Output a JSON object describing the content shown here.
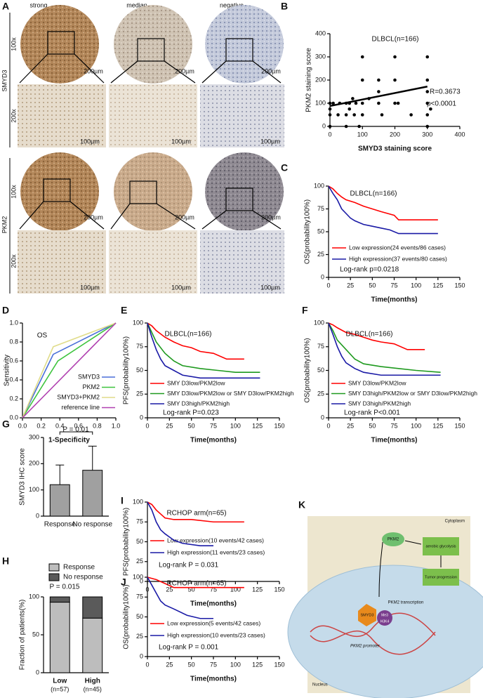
{
  "panel_labels": [
    "A",
    "B",
    "C",
    "D",
    "E",
    "F",
    "G",
    "H",
    "I",
    "J",
    "K"
  ],
  "ihc": {
    "columns": [
      "strong",
      "median",
      "negative"
    ],
    "markers": [
      "SMYD3",
      "PKM2"
    ],
    "magnifications": [
      "100x",
      "200x"
    ],
    "scale_bars": [
      "200µm",
      "100µm"
    ]
  },
  "chart_data": [
    {
      "type": "scatter",
      "xlabel": "SMYD3 staining score",
      "ylabel": "PKM2 staining score",
      "xlim": [
        0,
        400
      ],
      "ylim": [
        0,
        400
      ],
      "xticks": [
        0,
        100,
        200,
        300,
        400
      ],
      "yticks": [
        0,
        100,
        200,
        300,
        400
      ],
      "color": "#000000",
      "x": [
        0,
        0,
        0,
        0,
        10,
        25,
        30,
        50,
        50,
        50,
        60,
        60,
        70,
        75,
        80,
        90,
        100,
        100,
        100,
        100,
        120,
        150,
        150,
        150,
        160,
        200,
        200,
        200,
        210,
        250,
        300,
        300,
        300,
        300,
        300,
        310,
        300
      ],
      "values": [
        0,
        50,
        100,
        75,
        100,
        50,
        100,
        0,
        50,
        100,
        100,
        75,
        120,
        50,
        100,
        0,
        100,
        300,
        50,
        200,
        120,
        100,
        150,
        200,
        50,
        100,
        300,
        200,
        100,
        50,
        300,
        200,
        100,
        0,
        50,
        75,
        150
      ],
      "fit": {
        "x": [
          0,
          300
        ],
        "values": [
          88,
          172
        ]
      },
      "annotations": [
        "DLBCL(n=166)",
        "R=0.3673",
        "p<0.0001"
      ]
    },
    {
      "type": "line",
      "xlabel": "Time(months)",
      "ylabel": "OS(probability100%)",
      "xlim": [
        0,
        150
      ],
      "ylim": [
        0,
        100
      ],
      "xticks": [
        0,
        25,
        50,
        75,
        100,
        125,
        150
      ],
      "yticks": [
        0,
        25,
        50,
        75,
        100
      ],
      "series": [
        {
          "name": "Low expression(24 events/86 cases)",
          "color": "#ff0000",
          "x": [
            0,
            5,
            10,
            15,
            20,
            30,
            40,
            50,
            60,
            75,
            80,
            100,
            125
          ],
          "values": [
            100,
            97,
            92,
            88,
            85,
            82,
            78,
            75,
            72,
            68,
            63,
            63,
            63
          ]
        },
        {
          "name": "High expression(37 events/80 cases)",
          "color": "#1a1aa6",
          "x": [
            0,
            5,
            10,
            15,
            20,
            25,
            30,
            40,
            50,
            60,
            70,
            80,
            100,
            125
          ],
          "values": [
            100,
            92,
            85,
            75,
            70,
            65,
            62,
            58,
            56,
            54,
            52,
            48,
            48,
            48
          ]
        }
      ],
      "annotations": [
        "DLBCL(n=166)",
        "Log-rank p=0.0218"
      ]
    },
    {
      "type": "line",
      "xlabel": "1-Specificity",
      "ylabel": "Sensitivity",
      "xlim": [
        0,
        1
      ],
      "ylim": [
        0,
        1
      ],
      "xticks": [
        {
          "value": 0,
          "label": "0.0"
        },
        0.2,
        0.4,
        0.6,
        0.8,
        {
          "value": 1,
          "label": "1.0"
        }
      ],
      "yticks": [
        {
          "value": 0,
          "label": "0.0"
        },
        0.2,
        0.4,
        0.6,
        0.8,
        {
          "value": 1,
          "label": "1.0"
        }
      ],
      "series": [
        {
          "name": "SMYD3",
          "color": "#4a6fd8",
          "x": [
            0,
            0.33,
            1
          ],
          "values": [
            0,
            0.67,
            1
          ]
        },
        {
          "name": "PKM2",
          "color": "#3ec43e",
          "x": [
            0,
            0.38,
            1
          ],
          "values": [
            0,
            0.6,
            1
          ]
        },
        {
          "name": "SMYD3+PKM2",
          "color": "#e0dc8a",
          "x": [
            0,
            0.33,
            1
          ],
          "values": [
            0,
            0.75,
            1
          ]
        },
        {
          "name": "reference line",
          "color": "#b040b0",
          "x": [
            0,
            1
          ],
          "values": [
            0,
            1
          ]
        }
      ],
      "annotations": [
        "OS"
      ]
    },
    {
      "type": "line",
      "xlabel": "Time(months)",
      "ylabel": "PFS(probability100%)",
      "xlim": [
        0,
        150
      ],
      "ylim": [
        0,
        100
      ],
      "xticks": [
        0,
        25,
        50,
        75,
        100,
        125,
        150
      ],
      "yticks": [
        0,
        25,
        50,
        75,
        100
      ],
      "series": [
        {
          "name": "SMY D3low/PKM2low",
          "color": "#ff0000",
          "x": [
            0,
            5,
            10,
            20,
            30,
            40,
            50,
            60,
            75,
            90,
            110
          ],
          "values": [
            100,
            97,
            92,
            85,
            80,
            76,
            74,
            70,
            68,
            62,
            62
          ]
        },
        {
          "name": "SMY D3low/PKM2low or SMY D3low/PKM2high",
          "color": "#1f9a1f",
          "x": [
            0,
            5,
            10,
            20,
            30,
            40,
            60,
            80,
            100,
            128
          ],
          "values": [
            100,
            90,
            80,
            68,
            60,
            55,
            52,
            50,
            48,
            48
          ]
        },
        {
          "name": "SMY D3high/PKM2high",
          "color": "#1a1aa6",
          "x": [
            0,
            5,
            10,
            15,
            20,
            30,
            40,
            60,
            80,
            100,
            128
          ],
          "values": [
            100,
            85,
            72,
            62,
            55,
            50,
            45,
            42,
            42,
            42,
            42
          ]
        }
      ],
      "annotations": [
        "DLBCL(n=166)",
        "Log-rank P=0.023"
      ]
    },
    {
      "type": "line",
      "xlabel": "Time(months)",
      "ylabel": "OS(probability100%)",
      "xlim": [
        0,
        150
      ],
      "ylim": [
        0,
        100
      ],
      "xticks": [
        0,
        25,
        50,
        75,
        100,
        125,
        150
      ],
      "yticks": [
        0,
        25,
        50,
        75,
        100
      ],
      "series": [
        {
          "name": "SMY D3low/PKM2low",
          "color": "#ff0000",
          "x": [
            0,
            5,
            10,
            20,
            30,
            40,
            50,
            60,
            75,
            90,
            110
          ],
          "values": [
            100,
            98,
            95,
            90,
            88,
            85,
            82,
            80,
            78,
            72,
            72
          ]
        },
        {
          "name": "SMY D3high/PKM2low or SMY D3low/PKM2high",
          "color": "#1f9a1f",
          "x": [
            0,
            5,
            10,
            20,
            30,
            40,
            60,
            80,
            100,
            128
          ],
          "values": [
            100,
            92,
            82,
            72,
            62,
            57,
            54,
            52,
            50,
            48
          ]
        },
        {
          "name": "SMY D3high/PKM2high",
          "color": "#1a1aa6",
          "x": [
            0,
            5,
            10,
            15,
            20,
            30,
            40,
            60,
            80,
            100,
            128
          ],
          "values": [
            100,
            88,
            75,
            65,
            58,
            52,
            48,
            45,
            45,
            45,
            45
          ]
        }
      ],
      "annotations": [
        "DLBCL(n=166)",
        "Log-rank P<0.001"
      ]
    },
    {
      "type": "bar",
      "ylabel": "SMYD3 IHC score",
      "ylim": [
        0,
        300
      ],
      "yticks": [
        0,
        100,
        200,
        300
      ],
      "categories": [
        "Response",
        "No response"
      ],
      "values": [
        120,
        175
      ],
      "errors": [
        75,
        92
      ],
      "color": "#a0a0a0",
      "annotations": [
        "P = 0.01"
      ]
    },
    {
      "type": "stacked_bar",
      "ylabel": "Fraction of patients(%)",
      "ylim": [
        0,
        100
      ],
      "yticks": [
        0,
        50,
        100
      ],
      "categories": [
        "Low",
        "High"
      ],
      "sublabels": [
        "(n=57)",
        "(n=45)"
      ],
      "series": [
        {
          "name": "Response",
          "color": "#bdbdbd",
          "values": [
            93,
            72
          ]
        },
        {
          "name": "No response",
          "color": "#5a5a5a",
          "values": [
            7,
            28
          ]
        }
      ],
      "annotations": [
        "P = 0.015"
      ]
    },
    {
      "type": "line",
      "xlabel": "Time(months)",
      "ylabel": "PFS(probability100%)",
      "xlim": [
        0,
        150
      ],
      "ylim": [
        0,
        100
      ],
      "xticks": [
        0,
        25,
        50,
        75,
        100,
        125,
        150
      ],
      "yticks": [
        0,
        25,
        50,
        75,
        100
      ],
      "series": [
        {
          "name": "Low expression(10 events/42 cases)",
          "color": "#ff0000",
          "x": [
            0,
            5,
            10,
            15,
            20,
            30,
            50,
            75,
            110
          ],
          "values": [
            100,
            97,
            90,
            85,
            80,
            78,
            78,
            75,
            75
          ]
        },
        {
          "name": "High expression(11 events/23 cases)",
          "color": "#1a1aa6",
          "x": [
            0,
            5,
            10,
            15,
            20,
            30,
            40,
            60,
            75
          ],
          "values": [
            100,
            90,
            75,
            65,
            60,
            52,
            48,
            45,
            45
          ]
        }
      ],
      "annotations": [
        "RCHOP arm(n=65)",
        "Log-rank P = 0.031"
      ]
    },
    {
      "type": "line",
      "xlabel": "Time(months)",
      "ylabel": "OS(probability100%)",
      "xlim": [
        0,
        150
      ],
      "ylim": [
        0,
        100
      ],
      "xticks": [
        0,
        25,
        50,
        75,
        100,
        125,
        150
      ],
      "yticks": [
        0,
        25,
        50,
        75,
        100
      ],
      "series": [
        {
          "name": "Low expression(5 events/42 cases)",
          "color": "#ff0000",
          "x": [
            0,
            10,
            20,
            30,
            110
          ],
          "values": [
            100,
            97,
            92,
            87,
            87
          ]
        },
        {
          "name": "High expression(10 events/23 cases)",
          "color": "#1a1aa6",
          "x": [
            0,
            5,
            10,
            15,
            20,
            30,
            45,
            60,
            75
          ],
          "values": [
            100,
            90,
            80,
            70,
            65,
            60,
            52,
            48,
            48
          ]
        }
      ],
      "annotations": [
        "RCHOP arm(n=65)",
        "Log-rank P = 0.001"
      ]
    }
  ],
  "diagram": {
    "labels": [
      "Cytoplasm",
      "PKM2",
      "aerobic glycolysis",
      "Tumor progression",
      "PKM2 transcription",
      "SMYD3",
      "Me3",
      "H3K4",
      "PKM2 promoter",
      "Nucleus"
    ]
  }
}
